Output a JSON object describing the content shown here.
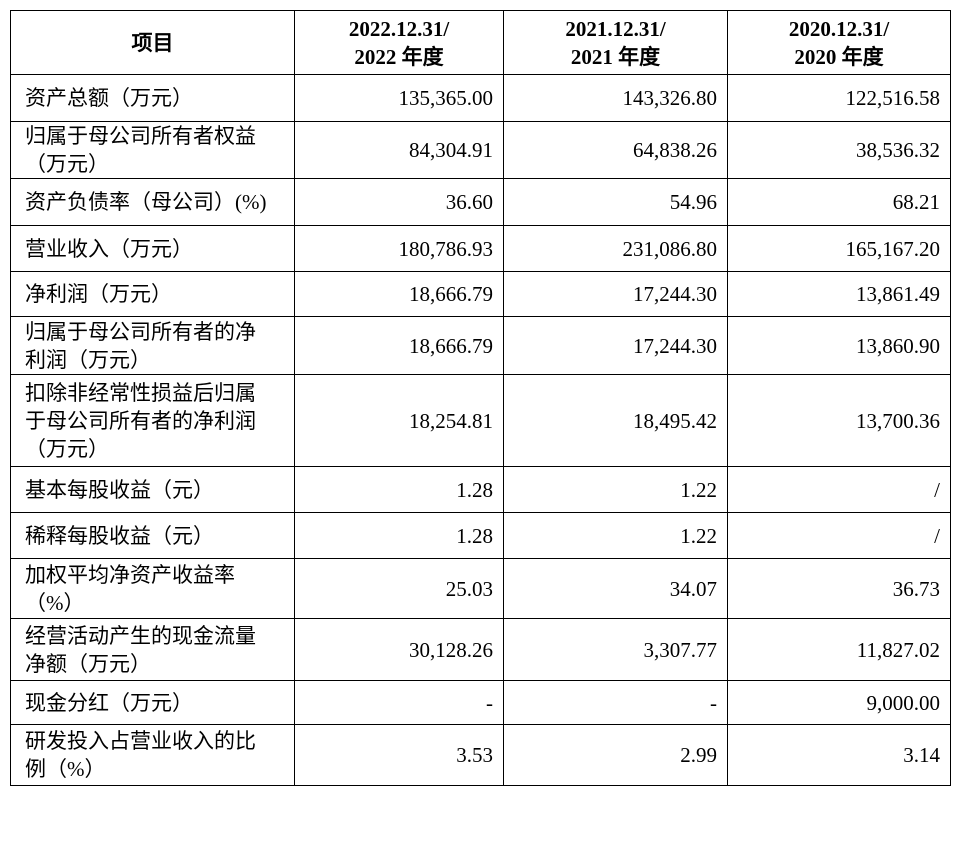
{
  "table": {
    "header": [
      [
        "项目"
      ],
      [
        "2022.12.31/",
        "2022 年度"
      ],
      [
        "2021.12.31/",
        "2021 年度"
      ],
      [
        "2020.12.31/",
        "2020 年度"
      ]
    ],
    "rows": [
      [
        [
          "资产总额（万元）"
        ],
        "135,365.00",
        "143,326.80",
        "122,516.58"
      ],
      [
        [
          "归属于母公司所有者权益",
          "（万元）"
        ],
        "84,304.91",
        "64,838.26",
        "38,536.32"
      ],
      [
        [
          "资产负债率（母公司）(%)"
        ],
        "36.60",
        "54.96",
        "68.21"
      ],
      [
        [
          "营业收入（万元）"
        ],
        "180,786.93",
        "231,086.80",
        "165,167.20"
      ],
      [
        [
          "净利润（万元）"
        ],
        "18,666.79",
        "17,244.30",
        "13,861.49"
      ],
      [
        [
          "归属于母公司所有者的净",
          "利润（万元）"
        ],
        "18,666.79",
        "17,244.30",
        "13,860.90"
      ],
      [
        [
          "扣除非经常性损益后归属",
          "于母公司所有者的净利润",
          "（万元）"
        ],
        "18,254.81",
        "18,495.42",
        "13,700.36"
      ],
      [
        [
          "基本每股收益（元）"
        ],
        "1.28",
        "1.22",
        "/"
      ],
      [
        [
          "稀释每股收益（元）"
        ],
        "1.28",
        "1.22",
        "/"
      ],
      [
        [
          "加权平均净资产收益率",
          "（%）"
        ],
        "25.03",
        "34.07",
        "36.73"
      ],
      [
        [
          "经营活动产生的现金流量",
          "净额（万元）"
        ],
        "30,128.26",
        "3,307.77",
        "11,827.02"
      ],
      [
        [
          "现金分红（万元）"
        ],
        "-",
        "-",
        "9,000.00"
      ],
      [
        [
          "研发投入占营业收入的比",
          "例（%）"
        ],
        "3.53",
        "2.99",
        "3.14"
      ]
    ]
  }
}
